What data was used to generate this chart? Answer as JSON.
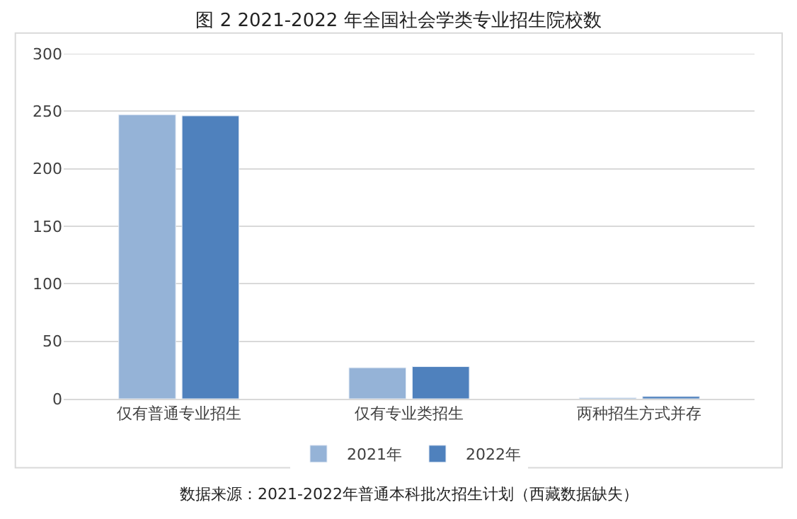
{
  "chart_data": {
    "type": "bar",
    "title": "图 2 2021-2022 年全国社会学类专业招生院校数",
    "categories": [
      "仅有普通专业招生",
      "仅有专业类招生",
      "两种招生方式并存"
    ],
    "series": [
      {
        "name": "2021年",
        "color": "#95b3d7",
        "values": [
          247,
          27,
          1
        ]
      },
      {
        "name": "2022年",
        "color": "#4f81bd",
        "values": [
          246,
          28,
          2
        ]
      }
    ],
    "ylim": [
      0,
      300
    ],
    "yticks": [
      0,
      50,
      100,
      150,
      200,
      250,
      300
    ],
    "grid": "y",
    "legend": "bottom",
    "annotations": [
      "数据来源：2021-2022年普通本科批次招生计划（西藏数据缺失）"
    ]
  }
}
